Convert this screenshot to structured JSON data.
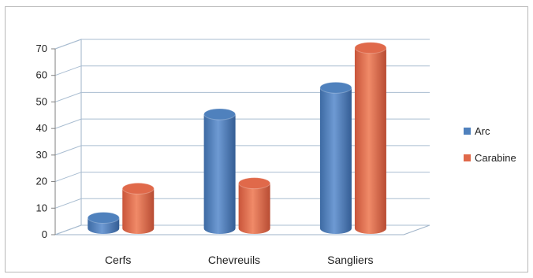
{
  "chart_data": {
    "type": "bar",
    "style": "3d-cylinder",
    "categories": [
      "Cerfs",
      "Chevreuils",
      "Sangliers"
    ],
    "series": [
      {
        "name": "Arc",
        "values": [
          4,
          43,
          53
        ],
        "color": "#4f81bd"
      },
      {
        "name": "Carabine",
        "values": [
          15,
          17,
          68
        ],
        "color": "#e0694a"
      }
    ],
    "ylim": [
      0,
      70
    ],
    "yticks": [
      0,
      10,
      20,
      30,
      40,
      50,
      60,
      70
    ],
    "grid": true,
    "legend_position": "right"
  }
}
